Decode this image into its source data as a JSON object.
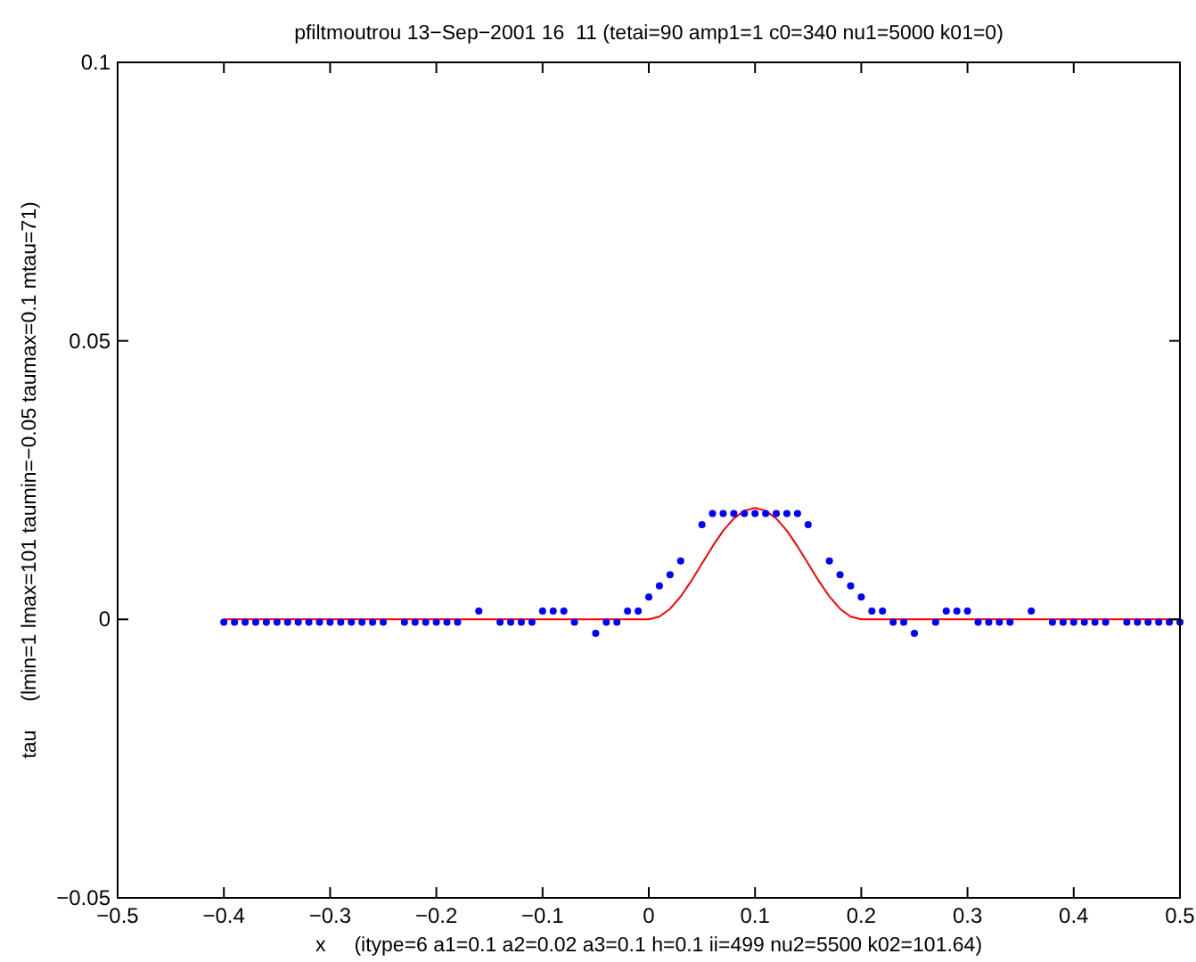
{
  "chart_data": {
    "type": "line",
    "title": "pfiltmoutrou 13−Sep−2001 16  11 (tetai=90 amp1=1 c0=340 nu1=5000 k01=0)",
    "xlabel": "x     (itype=6 a1=0.1 a2=0.02 a3=0.1 h=0.1 ii=499 nu2=5500 k02=101.64)",
    "ylabel": "tau     (lmin=1 lmax=101 taumin=−0.05 taumax=0.1 mtau=71)",
    "xlim": [
      -0.5,
      0.5
    ],
    "xticks": [
      {
        "value": -0.5,
        "label": "−0.5"
      },
      {
        "value": -0.4,
        "label": "−0.4"
      },
      {
        "value": -0.3,
        "label": "−0.3"
      },
      {
        "value": -0.2,
        "label": "−0.2"
      },
      {
        "value": -0.1,
        "label": "−0.1"
      },
      0,
      0.1,
      0.2,
      0.3,
      0.4,
      0.5
    ],
    "ylim": [
      -0.05,
      0.1
    ],
    "yticks": [
      {
        "value": -0.05,
        "label": "−0.05"
      },
      0,
      0.05,
      0.1
    ],
    "grid": false,
    "series": [
      {
        "color": "#ff0000",
        "line_style": "solid",
        "x": [
          -0.4,
          0,
          0.01,
          0.02,
          0.03,
          0.04,
          0.05,
          0.06,
          0.07,
          0.08,
          0.09,
          0.1,
          0.11,
          0.12,
          0.13,
          0.14,
          0.15,
          0.16,
          0.17,
          0.18,
          0.19,
          0.2,
          0.5
        ],
        "values": [
          0,
          0,
          0.0005,
          0.0019,
          0.0041,
          0.0069,
          0.01,
          0.0131,
          0.0159,
          0.0181,
          0.0195,
          0.02,
          0.0195,
          0.0181,
          0.0159,
          0.0131,
          0.01,
          0.0069,
          0.0041,
          0.0019,
          0.0005,
          0,
          0
        ]
      },
      {
        "type": "scatter",
        "color": "#0000ff",
        "marker": "circle",
        "x": [
          -0.4,
          -0.39,
          -0.38,
          -0.37,
          -0.36,
          -0.35,
          -0.34,
          -0.33,
          -0.32,
          -0.31,
          -0.3,
          -0.29,
          -0.28,
          -0.27,
          -0.26,
          -0.25,
          -0.23,
          -0.22,
          -0.21,
          -0.2,
          -0.19,
          -0.18,
          -0.16,
          -0.14,
          -0.13,
          -0.12,
          -0.11,
          -0.1,
          -0.09,
          -0.08,
          -0.07,
          -0.05,
          -0.04,
          -0.03,
          -0.02,
          -0.01,
          0,
          0.01,
          0.02,
          0.03,
          0.05,
          0.06,
          0.07,
          0.08,
          0.09,
          0.1,
          0.11,
          0.12,
          0.13,
          0.14,
          0.15,
          0.17,
          0.18,
          0.19,
          0.2,
          0.21,
          0.22,
          0.23,
          0.24,
          0.25,
          0.27,
          0.28,
          0.29,
          0.3,
          0.31,
          0.32,
          0.33,
          0.34,
          0.36,
          0.38,
          0.39,
          0.4,
          0.41,
          0.42,
          0.43,
          0.45,
          0.46,
          0.47,
          0.48,
          0.49,
          0.5
        ],
        "values": [
          -0.0005,
          -0.0005,
          -0.0005,
          -0.0005,
          -0.0005,
          -0.0005,
          -0.0005,
          -0.0005,
          -0.0005,
          -0.0005,
          -0.0005,
          -0.0005,
          -0.0005,
          -0.0005,
          -0.0005,
          -0.0005,
          -0.0005,
          -0.0005,
          -0.0005,
          -0.0005,
          -0.0005,
          -0.0005,
          0.0015,
          -0.0005,
          -0.0005,
          -0.0005,
          -0.0005,
          0.0015,
          0.0015,
          0.0015,
          -0.0005,
          -0.0025,
          -0.0005,
          -0.0005,
          0.0015,
          0.0015,
          0.004,
          0.006,
          0.008,
          0.0105,
          0.017,
          0.019,
          0.019,
          0.019,
          0.019,
          0.019,
          0.019,
          0.019,
          0.019,
          0.019,
          0.017,
          0.0105,
          0.008,
          0.006,
          0.004,
          0.0015,
          0.0015,
          -0.0005,
          -0.0005,
          -0.0025,
          -0.0005,
          0.0015,
          0.0015,
          0.0015,
          -0.0005,
          -0.0005,
          -0.0005,
          -0.0005,
          0.0015,
          -0.0005,
          -0.0005,
          -0.0005,
          -0.0005,
          -0.0005,
          -0.0005,
          -0.0005,
          -0.0005,
          -0.0005,
          -0.0005,
          -0.0005,
          -0.0005
        ]
      }
    ]
  }
}
